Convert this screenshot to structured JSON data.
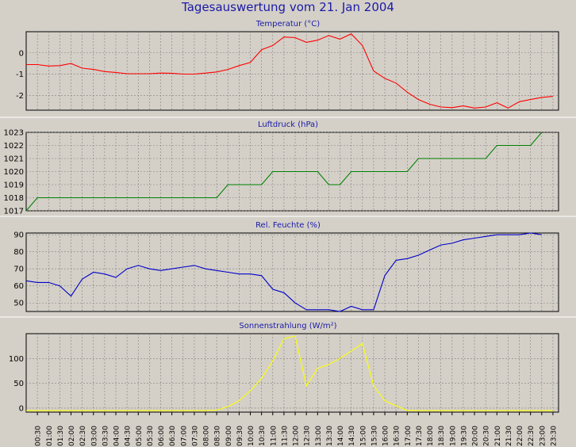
{
  "title": "Tagesauswertung vom 21. Jan 2004",
  "x_ticks": [
    "00:30",
    "01:00",
    "01:30",
    "02:00",
    "02:30",
    "03:00",
    "03:30",
    "04:00",
    "04:30",
    "05:00",
    "05:30",
    "06:00",
    "06:30",
    "07:00",
    "07:30",
    "08:00",
    "08:30",
    "09:00",
    "09:30",
    "10:00",
    "10:30",
    "11:00",
    "11:30",
    "12:00",
    "12:30",
    "13:00",
    "13:30",
    "14:00",
    "14:30",
    "15:00",
    "15:30",
    "16:00",
    "16:30",
    "17:00",
    "17:30",
    "18:00",
    "18:30",
    "19:00",
    "19:30",
    "20:00",
    "20:30",
    "21:00",
    "21:30",
    "22:00",
    "22:30",
    "23:00",
    "23:30"
  ],
  "colors": {
    "background": "#d4d0c8",
    "title": "#1a1aa6",
    "grid": "#808080"
  },
  "chart_data": [
    {
      "type": "line",
      "title": "Temperatur (°C)",
      "ylim": [
        -2.7,
        1.0
      ],
      "yticks": [
        0,
        -1,
        -2
      ],
      "color": "#ff0000",
      "x": [
        0,
        0.5,
        1,
        1.5,
        2,
        2.5,
        3,
        3.5,
        4,
        4.5,
        5,
        5.5,
        6,
        6.5,
        7,
        7.5,
        8,
        8.5,
        9,
        9.5,
        10,
        10.5,
        11,
        11.5,
        12,
        12.5,
        13,
        13.5,
        14,
        14.5,
        15,
        15.5,
        16,
        16.5,
        17,
        17.5,
        18,
        18.5,
        19,
        19.5,
        20,
        20.5,
        21,
        21.5,
        22,
        22.5,
        23,
        23.5
      ],
      "values": [
        -0.55,
        -0.55,
        -0.62,
        -0.6,
        -0.5,
        -0.72,
        -0.78,
        -0.88,
        -0.92,
        -0.98,
        -0.98,
        -0.98,
        -0.95,
        -0.96,
        -1.0,
        -1.0,
        -0.95,
        -0.9,
        -0.78,
        -0.6,
        -0.45,
        0.15,
        0.35,
        0.75,
        0.72,
        0.5,
        0.6,
        0.82,
        0.65,
        0.9,
        0.35,
        -0.85,
        -1.2,
        -1.42,
        -1.85,
        -2.2,
        -2.42,
        -2.55,
        -2.58,
        -2.5,
        -2.6,
        -2.55,
        -2.35,
        -2.6,
        -2.3,
        -2.2,
        -2.1,
        -2.05
      ]
    },
    {
      "type": "line",
      "title": "Luftdruck (hPa)",
      "ylim": [
        1017,
        1023
      ],
      "yticks": [
        1023,
        1022,
        1021,
        1020,
        1019,
        1018,
        1017
      ],
      "color": "#008000",
      "x": [
        0,
        0.5,
        2,
        8.5,
        9,
        10.5,
        11,
        13,
        13.5,
        14,
        14.5,
        17,
        17.5,
        20.5,
        21,
        22.5,
        23
      ],
      "values": [
        1017,
        1018,
        1018,
        1018,
        1019,
        1019,
        1020,
        1020,
        1019,
        1019,
        1020,
        1020,
        1021,
        1021,
        1022,
        1022,
        1023
      ]
    },
    {
      "type": "line",
      "title": "Rel. Feuchte (%)",
      "ylim": [
        45,
        91
      ],
      "yticks": [
        90,
        80,
        70,
        60,
        50
      ],
      "color": "#0000c8",
      "x": [
        0,
        0.5,
        1,
        1.5,
        2,
        2.5,
        3,
        3.5,
        4,
        4.5,
        5,
        5.5,
        6,
        6.5,
        7,
        7.5,
        8,
        8.5,
        9,
        9.5,
        10,
        10.5,
        11,
        11.5,
        12,
        12.5,
        13,
        13.5,
        14,
        14.5,
        15,
        15.5,
        16,
        16.5,
        17,
        17.5,
        18,
        18.5,
        19,
        19.5,
        20,
        20.5,
        21,
        21.5,
        22,
        22.5,
        23
      ],
      "values": [
        63,
        62,
        62,
        60,
        54,
        64,
        68,
        67,
        65,
        70,
        72,
        70,
        69,
        70,
        71,
        72,
        70,
        69,
        68,
        67,
        67,
        66,
        58,
        56,
        50,
        46,
        46,
        46,
        45,
        48,
        46,
        46,
        66,
        75,
        76,
        78,
        81,
        84,
        85,
        87,
        88,
        89,
        90,
        90,
        90,
        91,
        90
      ]
    },
    {
      "type": "line",
      "title": "Sonnenstrahlung (W/m²)",
      "ylim": [
        -8,
        150
      ],
      "yticks": [
        100,
        50,
        0
      ],
      "color": "#ffff00",
      "x": [
        0,
        0.5,
        1,
        1.5,
        2,
        2.5,
        3,
        3.5,
        4,
        4.5,
        5,
        5.5,
        6,
        6.5,
        7,
        7.5,
        8,
        8.5,
        9,
        9.5,
        10,
        10.5,
        11,
        11.5,
        12,
        12.5,
        13,
        13.5,
        14,
        14.5,
        15,
        15.5,
        16,
        16.5,
        17,
        17.5,
        18,
        18.5,
        19,
        19.5,
        20,
        20.5,
        21,
        21.5,
        22,
        22.5,
        23,
        23.5
      ],
      "values": [
        -5,
        -5,
        -5,
        -5,
        -5,
        -5,
        -5,
        -5,
        -5,
        -5,
        -5,
        -5,
        -5,
        -5,
        -5,
        -5,
        -5,
        -4,
        3,
        15,
        35,
        60,
        95,
        140,
        145,
        45,
        80,
        88,
        100,
        115,
        130,
        45,
        15,
        5,
        -5,
        -5,
        -5,
        -5,
        -5,
        -5,
        -5,
        -5,
        -5,
        -5,
        -5,
        -5,
        -5,
        -5
      ]
    }
  ]
}
